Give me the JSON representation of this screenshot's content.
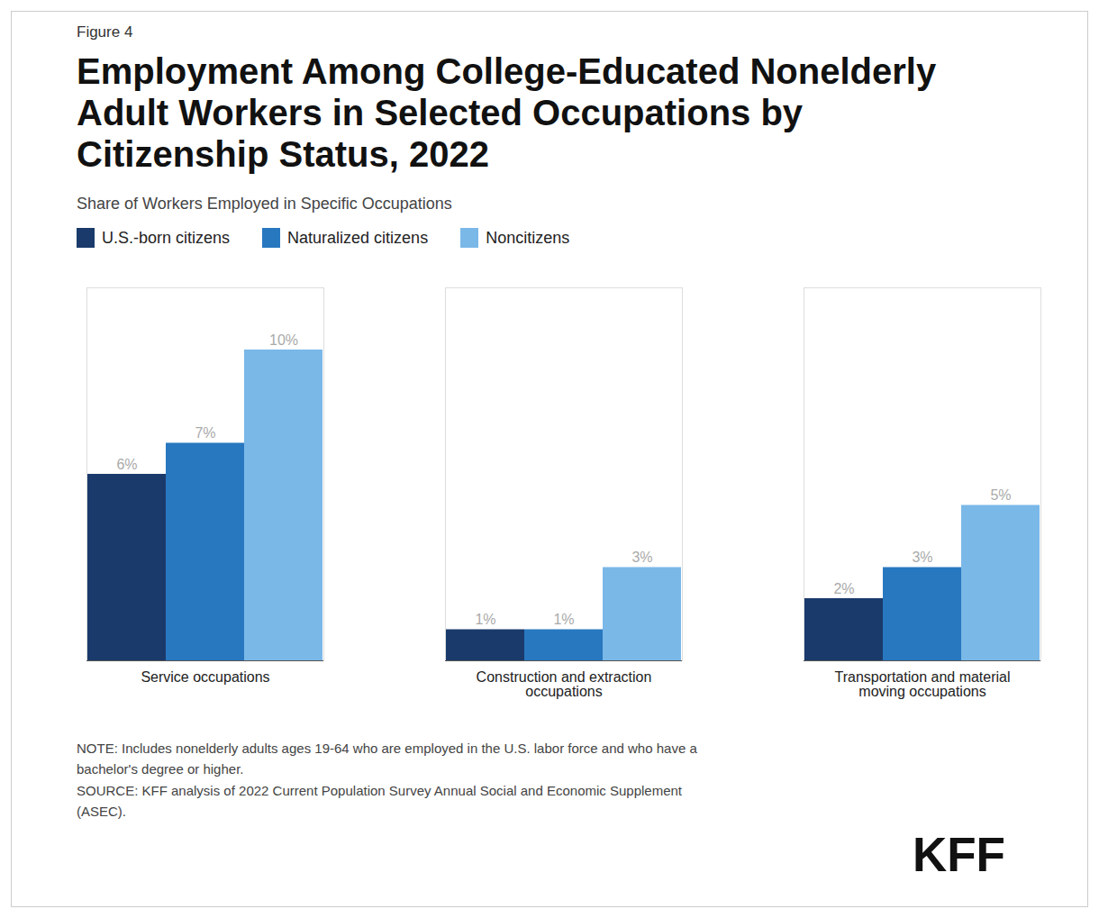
{
  "chart_data": {
    "type": "bar",
    "figure_label": "Figure 4",
    "title": "Employment Among College-Educated Nonelderly\nAdult Workers in Selected Occupations by\nCitizenship Status, 2022",
    "subtitle": "Share of Workers Employed in Specific Occupations",
    "categories": [
      "Service occupations",
      "Construction and extraction\noccupations",
      "Transportation and material\nmoving occupations"
    ],
    "series": [
      {
        "name": "U.S.-born citizens",
        "color": "#1a3a6b",
        "values": [
          6,
          1,
          2
        ],
        "value_labels": [
          "6%",
          "1%",
          "2%"
        ]
      },
      {
        "name": "Naturalized citizens",
        "color": "#2878c0",
        "values": [
          7,
          1,
          3
        ],
        "value_labels": [
          "7%",
          "1%",
          "3%"
        ]
      },
      {
        "name": "Noncitizens",
        "color": "#7ab8e8",
        "values": [
          10,
          3,
          5
        ],
        "value_labels": [
          "10%",
          "3%",
          "5%"
        ]
      }
    ],
    "ylim": [
      0,
      12
    ],
    "tick_labels": "x",
    "grid": false,
    "legend": "top",
    "data_labels": true,
    "note": "NOTE: Includes nonelderly adults ages 19-64 who are employed in the U.S. labor force and who have a\nbachelor's degree or higher.\nSOURCE: KFF analysis of 2022 Current Population Survey Annual Social and Economic Supplement\n(ASEC).",
    "annotations": [
      "KFF"
    ]
  }
}
